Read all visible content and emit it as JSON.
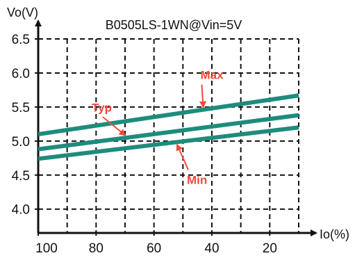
{
  "chart_data": {
    "type": "line",
    "title": "B0505LS-1WN@Vin=5V",
    "ylabel": "Vo(V)",
    "xlabel": "Io(%)",
    "xlim": [
      100,
      10
    ],
    "ylim": [
      3.65,
      6.5
    ],
    "x_ticks": [
      100,
      80,
      60,
      40,
      20
    ],
    "x_tick_labels": [
      "100",
      "80",
      "60",
      "40",
      "20"
    ],
    "y_ticks": [
      6.5,
      6.0,
      5.5,
      5.0,
      4.5,
      4.0
    ],
    "y_tick_labels": [
      "6.5",
      "6.0",
      "5.5",
      "5.0",
      "4.5",
      "4.0"
    ],
    "grid": true,
    "colors": {
      "series": "#1e8c7c",
      "annotation": "#f04a3c",
      "axis": "#111111"
    },
    "series": [
      {
        "name": "Max",
        "x": [
          100,
          10
        ],
        "y": [
          5.1,
          5.67
        ]
      },
      {
        "name": "Typ",
        "x": [
          100,
          10
        ],
        "y": [
          4.88,
          5.38
        ]
      },
      {
        "name": "Min",
        "x": [
          100,
          10
        ],
        "y": [
          4.74,
          5.2
        ]
      }
    ],
    "annotations": [
      {
        "text": "Max",
        "series": "Max",
        "at_x": 43
      },
      {
        "text": "Typ",
        "series": "Typ",
        "at_x": 70
      },
      {
        "text": "Min",
        "series": "Min",
        "at_x": 52
      }
    ]
  }
}
